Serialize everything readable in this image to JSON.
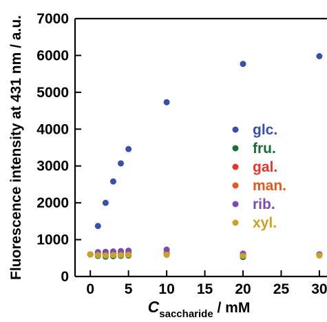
{
  "chart_data": {
    "type": "scatter",
    "title": "",
    "xlabel_symbol": "C",
    "xlabel_subscript": "saccharide",
    "xlabel_unit": " / mM",
    "ylabel": "Fluorescence intensity at 431 nm / a.u.",
    "xlim": [
      -2,
      31
    ],
    "ylim": [
      0,
      7000
    ],
    "x_ticks": [
      0,
      5,
      10,
      15,
      20,
      25,
      30
    ],
    "y_ticks": [
      0,
      1000,
      2000,
      3000,
      4000,
      5000,
      6000,
      7000
    ],
    "grid": false,
    "legend_position": "center-right",
    "series": [
      {
        "name": "glc.",
        "color": "#3a4fa8",
        "x": [
          0,
          1,
          2,
          3,
          4,
          5,
          10,
          20,
          30
        ],
        "y": [
          600,
          1370,
          2000,
          2580,
          3070,
          3460,
          4730,
          5770,
          5980
        ]
      },
      {
        "name": "fru.",
        "color": "#1e6b3a",
        "x": [
          0,
          1,
          2,
          3,
          4,
          5,
          10,
          20,
          30
        ],
        "y": [
          600,
          560,
          540,
          550,
          560,
          570,
          590,
          530,
          580
        ]
      },
      {
        "name": "gal.",
        "color": "#e8342a",
        "x": [
          0,
          1,
          2,
          3,
          4,
          5,
          10,
          20,
          30
        ],
        "y": [
          600,
          620,
          620,
          630,
          630,
          640,
          640,
          610,
          600
        ]
      },
      {
        "name": "man.",
        "color": "#e05a1e",
        "x": [
          0,
          1,
          2,
          3,
          4,
          5,
          10,
          20,
          30
        ],
        "y": [
          600,
          600,
          600,
          610,
          610,
          610,
          620,
          590,
          590
        ]
      },
      {
        "name": "rib.",
        "color": "#7b4bb0",
        "x": [
          0,
          1,
          2,
          3,
          4,
          5,
          10,
          20,
          30
        ],
        "y": [
          600,
          660,
          670,
          680,
          690,
          700,
          730,
          620,
          600
        ]
      },
      {
        "name": "xyl.",
        "color": "#c9a227",
        "x": [
          0,
          1,
          2,
          3,
          4,
          5,
          10,
          20,
          30
        ],
        "y": [
          600,
          580,
          570,
          580,
          580,
          590,
          590,
          560,
          570
        ]
      }
    ]
  }
}
